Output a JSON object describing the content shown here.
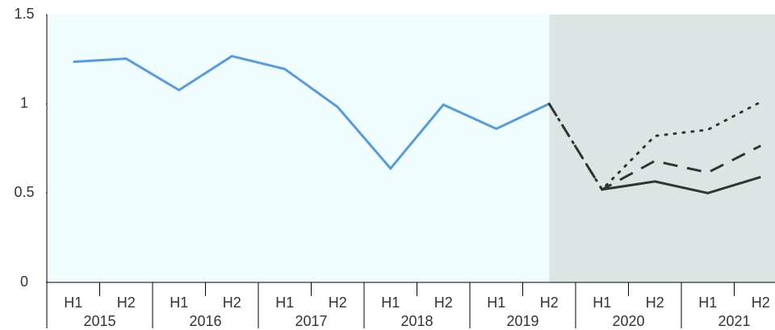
{
  "chart_data": {
    "type": "line",
    "categories": [
      "H1",
      "H2",
      "H1",
      "H2",
      "H1",
      "H2",
      "H1",
      "H2",
      "H1",
      "H2",
      "H1",
      "H2",
      "H1",
      "H2"
    ],
    "groups": [
      "2015",
      "2016",
      "2017",
      "2018",
      "2019",
      "2020",
      "2021"
    ],
    "series": [
      {
        "color": "#5b9bd5",
        "dash": "solid",
        "values": [
          1.235,
          1.253,
          1.077,
          1.267,
          1.195,
          0.982,
          0.638,
          0.995,
          0.86,
          1.0,
          null,
          null,
          null,
          null
        ]
      },
      {
        "color": "#333333",
        "dash": "dotted",
        "values": [
          null,
          null,
          null,
          null,
          null,
          null,
          null,
          null,
          null,
          1.0,
          0.52,
          0.82,
          0.855,
          1.01
        ]
      },
      {
        "color": "#333333",
        "dash": "dashed",
        "values": [
          null,
          null,
          null,
          null,
          null,
          null,
          null,
          null,
          null,
          1.0,
          0.52,
          0.68,
          0.615,
          0.765
        ]
      },
      {
        "color": "#333333",
        "dash": "solid",
        "values": [
          null,
          null,
          null,
          null,
          null,
          null,
          null,
          null,
          null,
          null,
          0.52,
          0.565,
          0.5,
          0.59
        ]
      }
    ],
    "ylim": [
      0,
      1.5
    ],
    "yticks": [
      0,
      0.5,
      1,
      1.5
    ],
    "plot_background": "#f0fdfe",
    "shade_color": "#dde4e4",
    "shaded_from_index": 9
  }
}
